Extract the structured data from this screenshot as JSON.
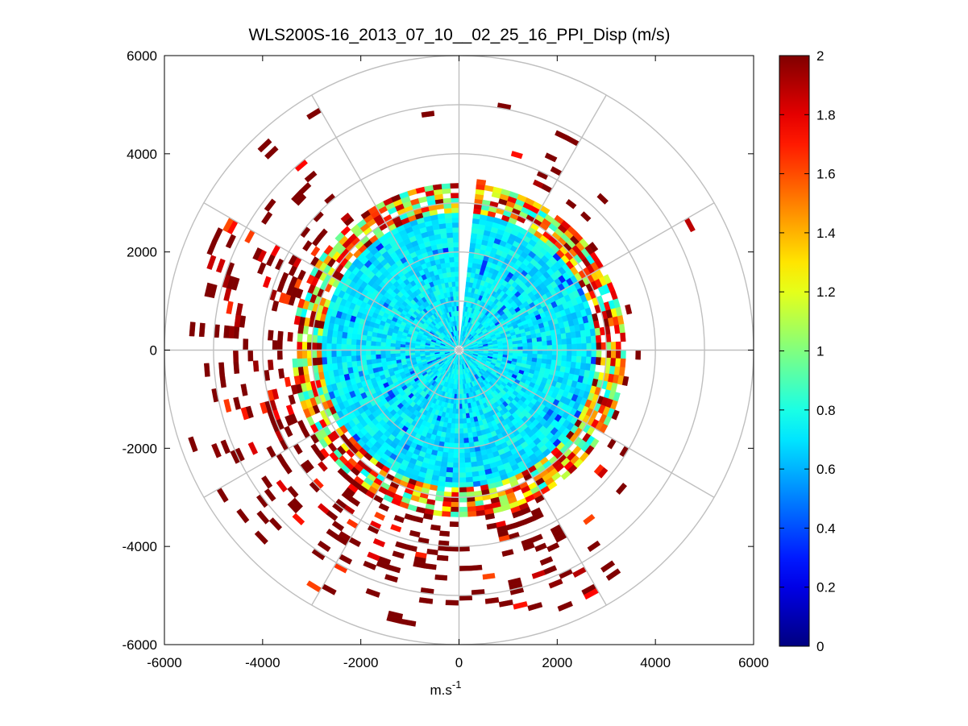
{
  "chart_data": {
    "type": "heatmap",
    "subtype": "polar-ppi-scan",
    "title": "WLS200S-16_2013_07_10__02_25_16_PPI_Disp (m/s)",
    "xlabel_base": "m.s",
    "xlabel_exp": "-1",
    "ylabel": "",
    "xlim": [
      -6000,
      6000
    ],
    "ylim": [
      -6000,
      6000
    ],
    "x_ticks": [
      "-6000",
      "-4000",
      "-2000",
      "0",
      "2000",
      "4000",
      "6000"
    ],
    "y_ticks": [
      "6000",
      "4000",
      "2000",
      "0",
      "-2000",
      "-4000",
      "-6000"
    ],
    "x_tick_values": [
      -6000,
      -4000,
      -2000,
      0,
      2000,
      4000,
      6000
    ],
    "y_tick_values": [
      6000,
      4000,
      2000,
      0,
      -2000,
      -4000,
      -6000
    ],
    "polar_ring_radii": [
      1000,
      2000,
      3000,
      4000,
      5000,
      6000
    ],
    "polar_spoke_angles_deg": [
      0,
      30,
      60,
      90,
      120,
      150,
      180,
      210,
      240,
      270,
      300,
      330
    ],
    "colorbar": {
      "colormap": "jet",
      "range": [
        0,
        2
      ],
      "ticks": [
        "0",
        "0.2",
        "0.4",
        "0.6",
        "0.8",
        "1",
        "1.2",
        "1.4",
        "1.6",
        "1.8",
        "2"
      ],
      "tick_values": [
        0,
        0.2,
        0.4,
        0.6,
        0.8,
        1.0,
        1.2,
        1.4,
        1.6,
        1.8,
        2.0
      ]
    },
    "field_profile": {
      "range_bin_m": 100,
      "beam_width_deg": 3,
      "max_range_m": 5800,
      "missing_sector_deg": [
        0,
        6
      ],
      "inner_mean_value": 0.72,
      "inner_radius_m": 2800,
      "transition_radius_m": 3400,
      "outer_value": 2.0,
      "enhanced_sectors_deg": [
        [
          200,
          320
        ],
        [
          150,
          200
        ]
      ],
      "clear_sectors_deg": [
        [
          300,
          345
        ],
        [
          60,
          120
        ]
      ]
    }
  }
}
